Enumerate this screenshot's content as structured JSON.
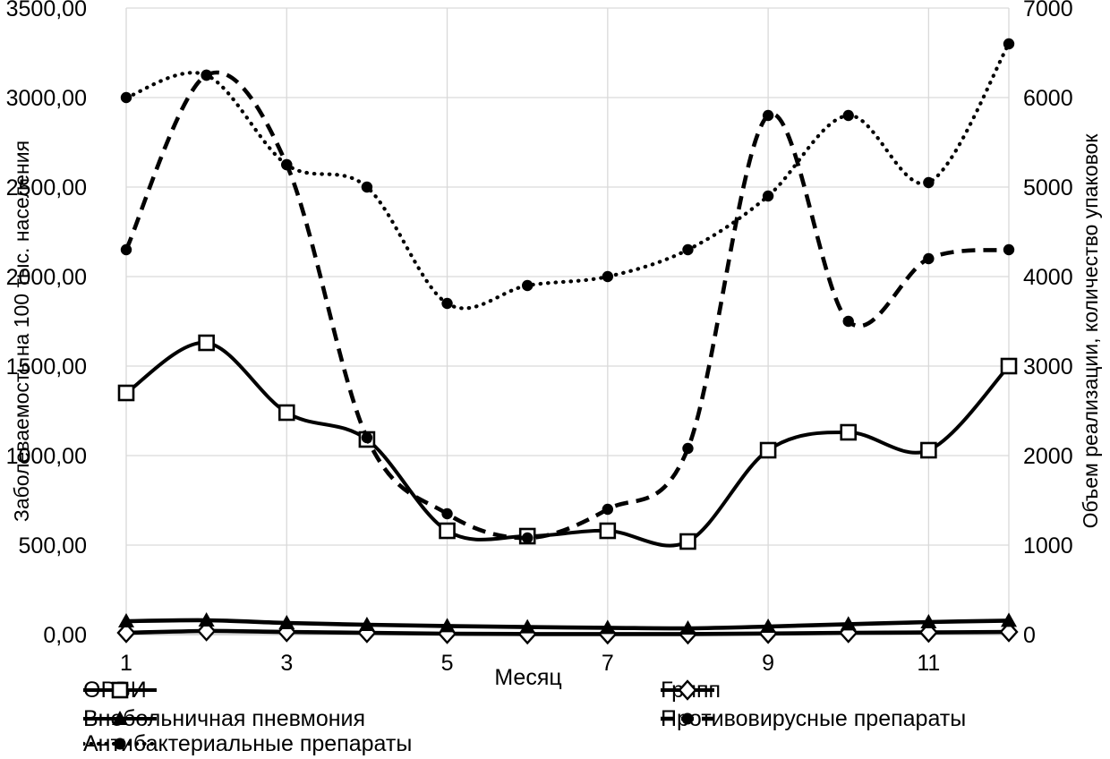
{
  "chart_data": {
    "type": "line",
    "title": "",
    "xlabel": "Месяц",
    "x": [
      1,
      2,
      3,
      4,
      5,
      6,
      7,
      8,
      9,
      10,
      11,
      12
    ],
    "x_ticks_at": [
      1,
      3,
      5,
      7,
      9,
      11
    ],
    "x_tick_labels": [
      "1",
      "3",
      "5",
      "7",
      "9",
      "11"
    ],
    "grid": true,
    "legend_position": "bottom",
    "left_axis": {
      "label": "Заболеваемость на 100 тыс. населения",
      "min": 0,
      "max": 3500,
      "step": 500,
      "tick_labels": [
        "0,00",
        "500,00",
        "1000,00",
        "1500,00",
        "2000,00",
        "2500,00",
        "3000,00",
        "3500,00"
      ]
    },
    "right_axis": {
      "label": "Объем реализации, количество упаковок",
      "min": 0,
      "max": 7000,
      "step": 1000,
      "tick_labels": [
        "0",
        "1000",
        "2000",
        "3000",
        "4000",
        "5000",
        "6000",
        "7000"
      ]
    },
    "series": [
      {
        "name": "ОРВИ",
        "axis": "left",
        "line": "solid",
        "marker": "open-square",
        "values": [
          1350,
          1630,
          1240,
          1090,
          580,
          550,
          580,
          520,
          1030,
          1130,
          1030,
          1500
        ]
      },
      {
        "name": "Грипп",
        "axis": "left",
        "line": "solid",
        "marker": "open-diamond",
        "values": [
          10,
          20,
          15,
          10,
          5,
          3,
          3,
          3,
          6,
          10,
          12,
          15
        ]
      },
      {
        "name": "Внебольничная пневмония",
        "axis": "left",
        "line": "solid",
        "marker": "filled-triangle",
        "values": [
          75,
          80,
          65,
          55,
          48,
          42,
          38,
          35,
          45,
          58,
          70,
          78
        ]
      },
      {
        "name": "Противовирусные препараты",
        "axis": "right",
        "line": "dashed",
        "marker": "filled-circle",
        "values": [
          4300,
          6250,
          5250,
          2200,
          1350,
          1080,
          1400,
          2080,
          5800,
          3500,
          4200,
          4300
        ]
      },
      {
        "name": "Антибактериальные препараты",
        "axis": "right",
        "line": "dotted",
        "marker": "filled-circle",
        "values": [
          6000,
          6250,
          5250,
          5000,
          3700,
          3900,
          4000,
          4300,
          4900,
          5800,
          5050,
          6600
        ]
      }
    ],
    "colors": {
      "line": "#000000",
      "grid": "#d9d9d9",
      "axis": "#bfbfbf",
      "text": "#000000",
      "background": "#ffffff"
    }
  }
}
